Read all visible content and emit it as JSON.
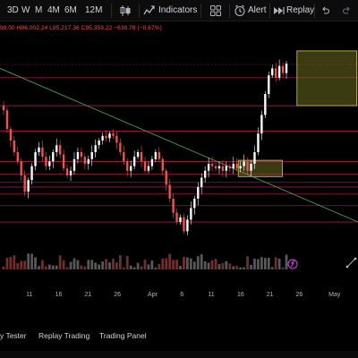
{
  "toolbar": {
    "timeframes": [
      "3D",
      "W",
      "M",
      "4M",
      "6M",
      "12M"
    ],
    "indicators_label": "Indicators",
    "alert_label": "Alert",
    "replay_label": "Replay"
  },
  "ohlc": {
    "open": "98.00",
    "high": "H96,002.24",
    "low": "L95,217.36",
    "close": "C95,359.22",
    "change": "−638.78 (−0.67%)"
  },
  "colors": {
    "background": "#000000",
    "down": "#ef5350",
    "up": "#26a69a",
    "candle_up": "#ffffff",
    "level_line": "#c2185b",
    "trendline": "#4caf50",
    "zone_fill": "#6b6b1f",
    "zone_border": "#d4c84a",
    "volume": "#6e6e6e"
  },
  "xaxis": {
    "ticks": [
      {
        "label": "11",
        "x": 11
      },
      {
        "label": "16",
        "x": 16
      },
      {
        "label": "21",
        "x": 21
      },
      {
        "label": "26",
        "x": 26
      },
      {
        "label": "Apr",
        "x": 32
      },
      {
        "label": "6",
        "x": 37
      },
      {
        "label": "11",
        "x": 42
      },
      {
        "label": "16",
        "x": 47
      },
      {
        "label": "21",
        "x": 52
      },
      {
        "label": "26",
        "x": 57
      },
      {
        "label": "May",
        "x": 63
      }
    ]
  },
  "bottom_panel": {
    "tabs": [
      "y Tester",
      "Replay Trading",
      "Trading Panel"
    ]
  },
  "chart_data": {
    "type": "candlestick",
    "title": "",
    "xlabel": "",
    "ylabel": "",
    "xlim": [
      6,
      67
    ],
    "horizontal_levels": [
      0.82,
      0.7,
      0.59,
      0.46,
      0.405,
      0.37,
      0.35,
      0.32,
      0.27,
      0.2
    ],
    "trendline": {
      "start": [
        6,
        0.86
      ],
      "end": [
        67,
        0.2
      ]
    },
    "zones": [
      {
        "x1": 46.6,
        "x2": 54.1,
        "top": 0.465,
        "bottom": 0.395
      },
      {
        "x1": 56.6,
        "x2": 66.8,
        "top": 0.935,
        "bottom": 0.7
      }
    ],
    "series_close": [
      0.68,
      0.6,
      0.55,
      0.5,
      0.46,
      0.4,
      0.33,
      0.38,
      0.44,
      0.5,
      0.52,
      0.48,
      0.44,
      0.46,
      0.5,
      0.53,
      0.49,
      0.43,
      0.4,
      0.42,
      0.47,
      0.5,
      0.48,
      0.45,
      0.47,
      0.5,
      0.53,
      0.55,
      0.57,
      0.56,
      0.58,
      0.57,
      0.54,
      0.5,
      0.46,
      0.42,
      0.44,
      0.48,
      0.5,
      0.46,
      0.42,
      0.44,
      0.47,
      0.5,
      0.47,
      0.42,
      0.36,
      0.3,
      0.24,
      0.2,
      0.22,
      0.16,
      0.21,
      0.26,
      0.3,
      0.35,
      0.39,
      0.42,
      0.45,
      0.44,
      0.43,
      0.44,
      0.42,
      0.44,
      0.43,
      0.45,
      0.43,
      0.44,
      0.46,
      0.42,
      0.45,
      0.5,
      0.58,
      0.66,
      0.75,
      0.83,
      0.86,
      0.82,
      0.87,
      0.84,
      0.88
    ]
  }
}
